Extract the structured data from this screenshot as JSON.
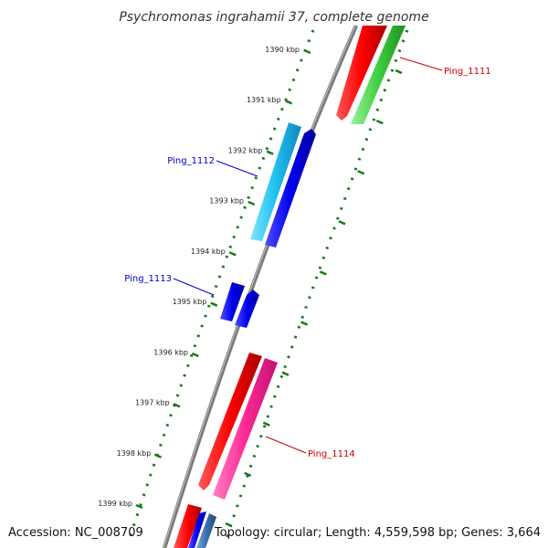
{
  "title": "Psychromonas ingrahamii 37, complete genome",
  "footer": {
    "accession": "Accession: NC_008709",
    "summary": "Topology: circular; Length: 4,559,598 bp; Genes: 3,664"
  },
  "colors": {
    "backbone": "#808080",
    "tick": "#1a7a1a",
    "forward_label": "#cc0000",
    "reverse_label": "#0000cc"
  },
  "ticks": [
    {
      "label": "1390 kbp",
      "kbp": 1390
    },
    {
      "label": "1391 kbp",
      "kbp": 1391
    },
    {
      "label": "1392 kbp",
      "kbp": 1392
    },
    {
      "label": "1393 kbp",
      "kbp": 1393
    },
    {
      "label": "1394 kbp",
      "kbp": 1394
    },
    {
      "label": "1395 kbp",
      "kbp": 1395
    },
    {
      "label": "1396 kbp",
      "kbp": 1396
    },
    {
      "label": "1397 kbp",
      "kbp": 1397
    },
    {
      "label": "1398 kbp",
      "kbp": 1398
    },
    {
      "label": "1399 kbp",
      "kbp": 1399
    }
  ],
  "labels": [
    {
      "text": "Ping_1111",
      "color": "#cc0000"
    },
    {
      "text": "Ping_1112",
      "color": "#0000cc"
    },
    {
      "text": "Ping_1113",
      "color": "#0000cc"
    },
    {
      "text": "Ping_1114",
      "color": "#cc0000"
    }
  ]
}
